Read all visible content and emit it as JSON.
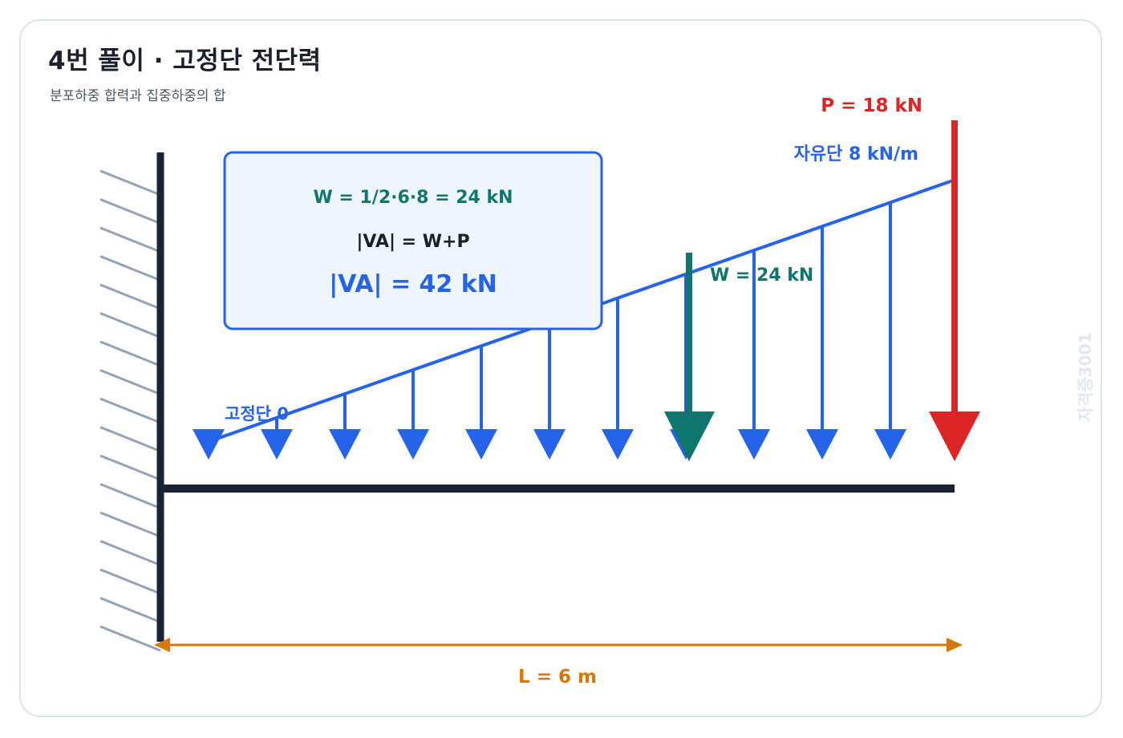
{
  "header": {
    "title": "4번 풀이 · 고정단 전단력",
    "subtitle": "분포하중 합력과 집중하중의 합"
  },
  "diagram": {
    "span_m": 6,
    "load_fixed_end_kN_per_m": 0,
    "load_free_end_kN_per_m": 8,
    "point_load_kN": 18,
    "resultant_kN": 24,
    "resultant_position_m": 4,
    "labels": {
      "point_load": "P = 18 kN",
      "free_end_intensity": "자유단 8 kN/m",
      "fixed_end_intensity": "고정단 0",
      "resultant": "W = 24 kN",
      "span": "L = 6 m"
    },
    "formula_box": {
      "line1": "W = 1/2·6·8 = 24 kN",
      "line2": "|VA| = W+P",
      "line3": "|VA| = 42 kN"
    },
    "watermark": "자격증3001",
    "colors": {
      "beam": "#1a2236",
      "distributed_load": "#2563eb",
      "resultant": "#0f766e",
      "point_load": "#dc2626",
      "dimension": "#d97706",
      "hatch": "#94a3b8",
      "box_fill": "#eff6ff",
      "box_stroke": "#2563eb"
    }
  }
}
